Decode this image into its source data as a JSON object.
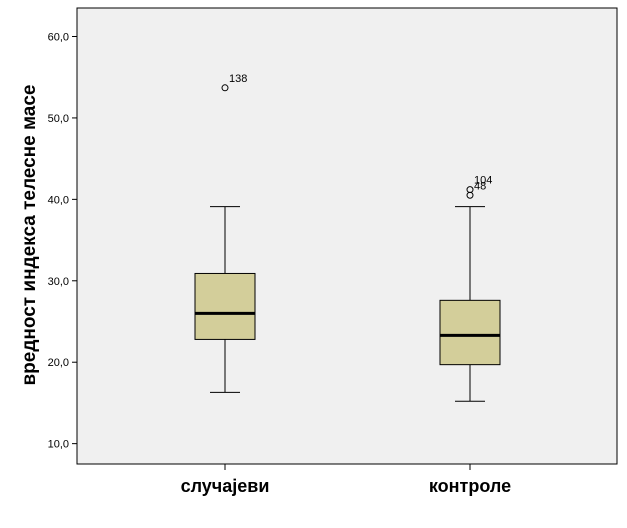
{
  "chart_data": {
    "type": "boxplot",
    "title": "",
    "xlabel": "",
    "ylabel": "вредност индекса телесне масе",
    "ylim": [
      7.5,
      63.5
    ],
    "yticks": [
      10,
      20,
      30,
      40,
      50,
      60
    ],
    "ytick_labels": [
      "10,0",
      "20,0",
      "30,0",
      "40,0",
      "50,0",
      "60,0"
    ],
    "categories": [
      "случајеви",
      "контроле"
    ],
    "boxes": [
      {
        "category": "случајеви",
        "whisker_low": 16.3,
        "q1": 22.8,
        "median": 26.0,
        "q3": 30.9,
        "whisker_high": 39.1,
        "outliers": [
          {
            "value": 53.7,
            "label": "138"
          }
        ]
      },
      {
        "category": "контроле",
        "whisker_low": 15.2,
        "q1": 19.7,
        "median": 23.3,
        "q3": 27.6,
        "whisker_high": 39.1,
        "outliers": [
          {
            "value": 41.2,
            "label": "104"
          },
          {
            "value": 40.5,
            "label": "48"
          }
        ]
      }
    ],
    "grid": false,
    "colors": {
      "plot_background": "#f0f0f0",
      "box_fill": "#d3ce9a",
      "box_stroke": "#000000",
      "median": "#000000",
      "frame": "#000000"
    }
  }
}
